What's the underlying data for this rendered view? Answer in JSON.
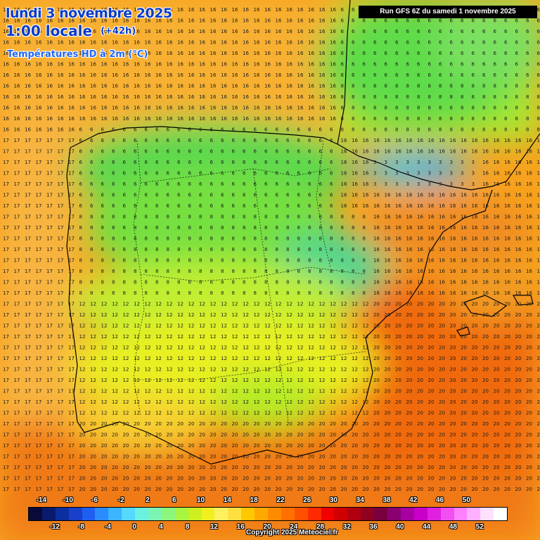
{
  "header": {
    "title_line1": "lundi 3 novembre 2025",
    "title_line2": "1:00 locale",
    "lead": "(+42h)",
    "product": "Températures HD à 2m (°C)",
    "run": "Run GFS 6Z du samedi 1 novembre 2025"
  },
  "footer": {
    "copyright": "Copyright 2025 Meteociel.fr"
  },
  "legend": {
    "top_labels": [
      "-14",
      "-10",
      "-6",
      "-2",
      "2",
      "6",
      "10",
      "14",
      "18",
      "22",
      "26",
      "30",
      "34",
      "38",
      "42",
      "46",
      "50"
    ],
    "bottom_labels": [
      "-12",
      "-8",
      "-4",
      "0",
      "4",
      "8",
      "12",
      "16",
      "20",
      "24",
      "28",
      "32",
      "36",
      "40",
      "44",
      "48",
      "52"
    ],
    "colors": [
      "#0a0a3a",
      "#0a1a6e",
      "#0b2f9e",
      "#1a3fc8",
      "#1f5ff0",
      "#2a8cff",
      "#3cb4ff",
      "#56d8ff",
      "#6cf0e0",
      "#7cf5b4",
      "#8cf57c",
      "#a8f542",
      "#cef020",
      "#f0f020",
      "#fff060",
      "#ffe040",
      "#ffc800",
      "#ffa800",
      "#ff8c00",
      "#ff7000",
      "#ff5000",
      "#ff2a00",
      "#f00000",
      "#d00000",
      "#b00010",
      "#900020",
      "#780040",
      "#8a0070",
      "#a800a0",
      "#c800c8",
      "#e020e0",
      "#f050f0",
      "#ff80ff",
      "#ffb0ff",
      "#ffe0ff",
      "#ffffff"
    ]
  },
  "map": {
    "region": "Iberian Peninsula",
    "grid_note": "temperature values"
  }
}
